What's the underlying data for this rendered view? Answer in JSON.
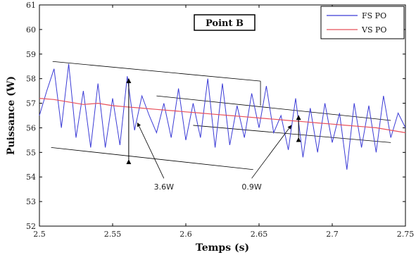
{
  "chart_data": {
    "type": "line",
    "title": "Point B",
    "xlabel": "Temps (s)",
    "ylabel": "Puissance (W)",
    "xlim": [
      2.5,
      2.75
    ],
    "ylim": [
      52,
      61
    ],
    "x_ticks": [
      "2.5",
      "2.55",
      "2.6",
      "2.65",
      "2.7",
      "2.75"
    ],
    "y_ticks": [
      "52",
      "53",
      "54",
      "55",
      "56",
      "57",
      "58",
      "59",
      "60",
      "61"
    ],
    "grid": false,
    "legend_position": "top-right",
    "series": [
      {
        "name": "FS PO",
        "color": "#3b3bd6",
        "x": [
          2.5,
          2.505,
          2.51,
          2.515,
          2.52,
          2.525,
          2.53,
          2.535,
          2.54,
          2.545,
          2.55,
          2.555,
          2.56,
          2.565,
          2.57,
          2.575,
          2.58,
          2.585,
          2.59,
          2.595,
          2.6,
          2.605,
          2.61,
          2.615,
          2.62,
          2.625,
          2.63,
          2.635,
          2.64,
          2.645,
          2.65,
          2.655,
          2.66,
          2.665,
          2.67,
          2.675,
          2.68,
          2.685,
          2.69,
          2.695,
          2.7,
          2.705,
          2.71,
          2.715,
          2.72,
          2.725,
          2.73,
          2.735,
          2.74,
          2.745,
          2.75
        ],
        "y": [
          56.5,
          57.5,
          58.4,
          56.0,
          58.6,
          55.6,
          57.5,
          55.2,
          57.8,
          55.2,
          57.2,
          55.3,
          58.1,
          55.9,
          57.3,
          56.5,
          55.8,
          57.0,
          55.6,
          57.6,
          55.5,
          57.0,
          55.6,
          58.0,
          55.2,
          57.8,
          55.3,
          56.9,
          55.6,
          57.4,
          56.0,
          57.7,
          55.8,
          56.5,
          55.1,
          57.2,
          54.8,
          56.8,
          55.0,
          57.0,
          55.4,
          56.6,
          54.3,
          57.0,
          55.2,
          56.9,
          55.0,
          57.3,
          55.6,
          56.6,
          56.0
        ]
      },
      {
        "name": "VS PO",
        "color": "#e8505b",
        "x": [
          2.5,
          2.51,
          2.52,
          2.53,
          2.54,
          2.55,
          2.56,
          2.57,
          2.58,
          2.59,
          2.6,
          2.61,
          2.62,
          2.63,
          2.64,
          2.65,
          2.66,
          2.67,
          2.68,
          2.69,
          2.7,
          2.71,
          2.72,
          2.73,
          2.74,
          2.75
        ],
        "y": [
          57.2,
          57.15,
          57.05,
          56.95,
          57.0,
          56.9,
          56.85,
          56.8,
          56.75,
          56.7,
          56.65,
          56.6,
          56.55,
          56.5,
          56.45,
          56.4,
          56.35,
          56.3,
          56.25,
          56.2,
          56.15,
          56.1,
          56.05,
          56.0,
          55.9,
          55.8
        ]
      }
    ],
    "envelopes": [
      {
        "x1": 2.509,
        "y1": 58.7,
        "x2": 2.651,
        "y2": 57.9
      },
      {
        "x1": 2.651,
        "y1": 57.9,
        "x2": 2.651,
        "y2": 56.9
      },
      {
        "x1": 2.508,
        "y1": 55.2,
        "x2": 2.646,
        "y2": 54.3
      },
      {
        "x1": 2.58,
        "y1": 57.3,
        "x2": 2.74,
        "y2": 56.3
      },
      {
        "x1": 2.605,
        "y1": 56.1,
        "x2": 2.74,
        "y2": 55.4
      }
    ],
    "annotations": [
      {
        "text": "3.6W",
        "label_x": 2.585,
        "label_y": 53.6,
        "arrow_to_x": 2.567,
        "arrow_to_y": 56.2,
        "bracket_x": 2.561,
        "bracket_top": 58.0,
        "bracket_bottom": 54.7
      },
      {
        "text": "0.9W",
        "label_x": 2.645,
        "label_y": 53.6,
        "arrow_to_x": 2.672,
        "arrow_to_y": 56.1,
        "bracket_x": 2.677,
        "bracket_top": 56.5,
        "bracket_bottom": 55.6
      }
    ]
  }
}
